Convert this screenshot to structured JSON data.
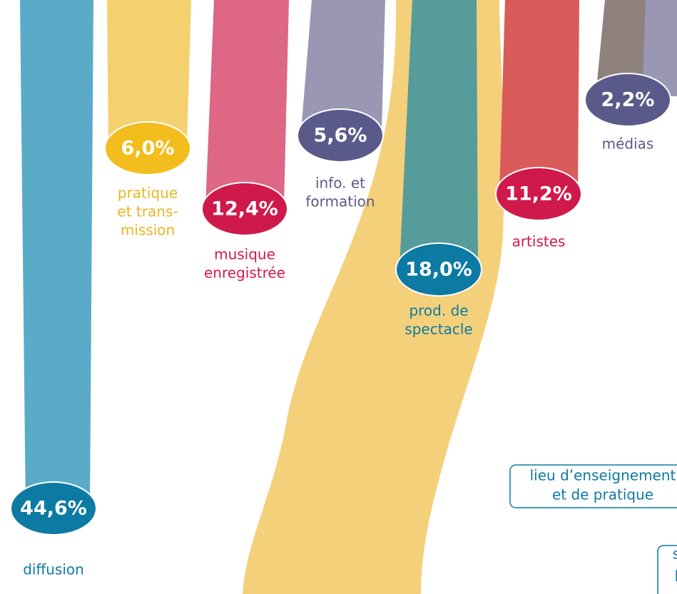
{
  "segments": [
    {
      "value": "44,6%",
      "label": [
        "diffusion"
      ]
    },
    {
      "value": "6,0%",
      "label": [
        "pratique",
        "et trans-",
        "mission"
      ]
    },
    {
      "value": "12,4%",
      "label": [
        "musique",
        "enregistrée"
      ]
    },
    {
      "value": "5,6%",
      "label": [
        "info. et",
        "formation"
      ]
    },
    {
      "value": "18,0%",
      "label": [
        "prod. de",
        "spectacle"
      ]
    },
    {
      "value": "11,2%",
      "label": [
        "artistes"
      ]
    },
    {
      "value": "2,2%",
      "label": [
        "médias"
      ]
    }
  ],
  "boxes": [
    {
      "label": [
        "lieu d’enseignement",
        "et de pratique"
      ]
    },
    {
      "label": [
        "st",
        "p"
      ]
    }
  ]
}
